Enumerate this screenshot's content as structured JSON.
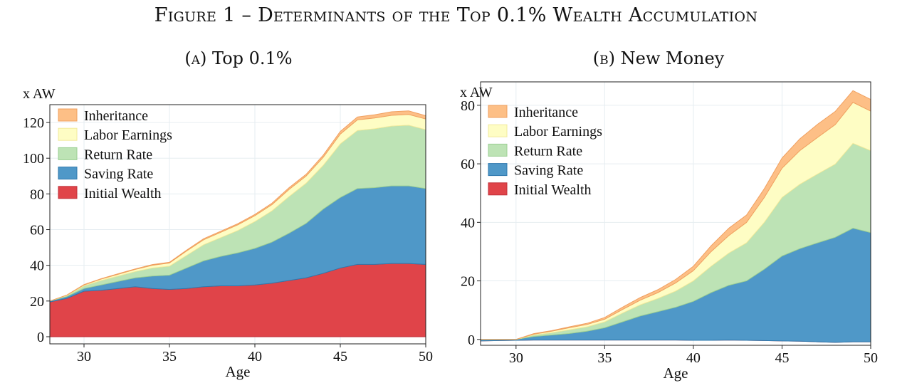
{
  "figure_title": "Figure 1 – Determinants of the Top 0.1% Wealth Accumulation",
  "colors": {
    "inheritance": "#fdbf86",
    "labor": "#fefdc4",
    "return": "#bde3b5",
    "saving": "#4f98c8",
    "initial": "#e04449"
  },
  "chart_data": [
    {
      "type": "area",
      "panel_label": "(a)",
      "title": "Top 0.1%",
      "xlabel": "Age",
      "ylabel": "x AW",
      "xlim": [
        28,
        50
      ],
      "ylim": [
        -4,
        130
      ],
      "xticks": [
        30,
        35,
        40,
        45,
        50
      ],
      "yticks": [
        0,
        20,
        40,
        60,
        80,
        100,
        120
      ],
      "grid": true,
      "legend_position": "top-left",
      "x": [
        28,
        29,
        30,
        31,
        32,
        33,
        34,
        35,
        36,
        37,
        38,
        39,
        40,
        41,
        42,
        43,
        44,
        45,
        46,
        47,
        48,
        49,
        50
      ],
      "series": [
        {
          "name": "Initial Wealth",
          "key": "initial",
          "values": [
            19.5,
            21.5,
            25.5,
            26.0,
            27.0,
            28.0,
            27.0,
            26.5,
            27.0,
            28.0,
            28.5,
            28.5,
            29.0,
            30.0,
            31.5,
            33.0,
            35.5,
            38.5,
            40.5,
            40.5,
            41.0,
            41.0,
            40.5
          ]
        },
        {
          "name": "Saving Rate",
          "key": "saving",
          "values": [
            0.5,
            1.0,
            1.5,
            3.0,
            4.0,
            5.0,
            7.0,
            8.0,
            11.5,
            14.5,
            16.5,
            18.5,
            20.5,
            23.0,
            26.5,
            30.5,
            36.0,
            39.5,
            42.5,
            43.0,
            43.5,
            43.5,
            42.5
          ]
        },
        {
          "name": "Return Rate",
          "key": "return",
          "values": [
            0,
            0.5,
            1.5,
            2.5,
            3.0,
            3.5,
            4.5,
            5.0,
            7.0,
            9.0,
            10.5,
            12.5,
            15.0,
            17.5,
            20.5,
            22.5,
            24.5,
            30.0,
            32.5,
            33.0,
            33.5,
            34.0,
            33.0
          ]
        },
        {
          "name": "Labor Earnings",
          "key": "labor",
          "values": [
            0,
            0.3,
            0.5,
            0.8,
            1.0,
            1.2,
            1.5,
            1.8,
            2.5,
            2.8,
            3.0,
            3.2,
            3.3,
            3.5,
            4.0,
            4.0,
            4.5,
            5.5,
            6.0,
            6.0,
            6.0,
            6.0,
            6.0
          ]
        },
        {
          "name": "Inheritance",
          "key": "inheritance",
          "values": [
            0,
            0.1,
            0.2,
            0.2,
            0.3,
            0.3,
            0.4,
            0.4,
            0.5,
            0.6,
            0.6,
            0.6,
            0.7,
            0.8,
            1.0,
            1.0,
            1.2,
            1.5,
            1.6,
            1.8,
            2.0,
            2.0,
            1.8
          ]
        }
      ]
    },
    {
      "type": "area",
      "panel_label": "(b)",
      "title": "New Money",
      "xlabel": "Age",
      "ylabel": "x AW",
      "xlim": [
        28,
        50
      ],
      "ylim": [
        -2,
        88
      ],
      "xticks": [
        30,
        35,
        40,
        45,
        50
      ],
      "yticks": [
        0,
        20,
        40,
        60,
        80
      ],
      "grid": true,
      "legend_position": "top-left",
      "x": [
        28,
        29,
        30,
        31,
        32,
        33,
        34,
        35,
        36,
        37,
        38,
        39,
        40,
        41,
        42,
        43,
        44,
        45,
        46,
        47,
        48,
        49,
        50
      ],
      "series": [
        {
          "name": "Initial Wealth",
          "key": "initial",
          "values": [
            -0.5,
            -0.4,
            -0.3,
            -0.2,
            -0.2,
            -0.2,
            -0.2,
            -0.2,
            -0.2,
            -0.2,
            -0.2,
            -0.2,
            -0.3,
            -0.3,
            -0.2,
            -0.3,
            -0.4,
            -0.5,
            -0.6,
            -0.8,
            -1.0,
            -0.8,
            -0.8
          ]
        },
        {
          "name": "Saving Rate",
          "key": "saving",
          "values": [
            0.5,
            0.4,
            0.3,
            1.2,
            1.7,
            2.2,
            3.0,
            4.2,
            6.2,
            8.2,
            9.7,
            11.2,
            13.3,
            16.3,
            18.7,
            20.3,
            24.4,
            29.0,
            31.6,
            33.8,
            35.9,
            38.8,
            37.3
          ]
        },
        {
          "name": "Return Rate",
          "key": "return",
          "values": [
            0,
            0,
            0,
            0.5,
            0.8,
            1.3,
            1.5,
            2.0,
            3.0,
            3.8,
            4.5,
            5.5,
            7.0,
            9.0,
            11.0,
            13.0,
            16.0,
            20.0,
            22.0,
            23.5,
            25.0,
            29.0,
            28.0
          ]
        },
        {
          "name": "Labor Earnings",
          "key": "labor",
          "values": [
            0,
            0,
            0,
            0.3,
            0.5,
            0.7,
            0.8,
            0.9,
            1.2,
            1.6,
            2.0,
            2.8,
            3.5,
            5.0,
            6.0,
            7.0,
            8.5,
            10.0,
            11.5,
            12.5,
            13.5,
            14.0,
            13.5
          ]
        },
        {
          "name": "Inheritance",
          "key": "inheritance",
          "values": [
            0,
            0,
            0,
            0.2,
            0.2,
            0.3,
            0.4,
            0.6,
            0.8,
            0.9,
            1.0,
            1.2,
            1.5,
            2.0,
            2.5,
            2.5,
            3.0,
            3.5,
            4.0,
            4.5,
            4.5,
            4.0,
            4.0
          ]
        }
      ]
    }
  ]
}
